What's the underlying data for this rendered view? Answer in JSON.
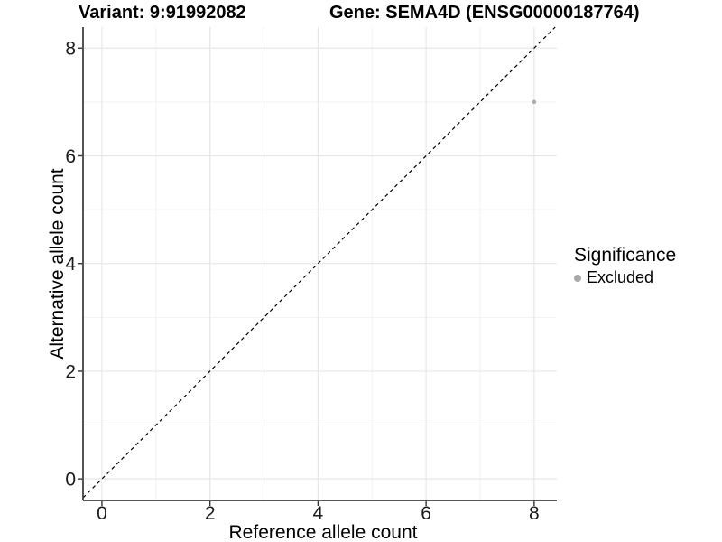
{
  "chart_data": {
    "type": "scatter",
    "title_left": "Variant: 9:91992082",
    "title_right": "Gene: SEMA4D (ENSG00000187764)",
    "xlabel": "Reference allele count",
    "ylabel": "Alternative allele count",
    "x_axis": {
      "ticks": [
        0,
        2,
        4,
        6,
        8
      ],
      "minor_ticks": [
        1,
        3,
        5,
        7
      ],
      "range": [
        -0.35,
        8.42
      ]
    },
    "y_axis": {
      "ticks": [
        0,
        2,
        4,
        6,
        8
      ],
      "minor_ticks": [
        1,
        3,
        5,
        7
      ],
      "range": [
        -0.4,
        8.39
      ]
    },
    "reference_line": {
      "equation": "y = x",
      "style": "dashed",
      "color": "#000000",
      "from": [
        -0.35,
        -0.35
      ],
      "to": [
        8.39,
        8.39
      ]
    },
    "series": [
      {
        "name": "Excluded",
        "color": "#adadad",
        "points": [
          {
            "x": 8,
            "y": 7
          }
        ]
      }
    ],
    "legend": {
      "title": "Significance",
      "position": "right",
      "items": [
        {
          "label": "Excluded",
          "color": "#a9a9a9"
        }
      ]
    },
    "grid": true,
    "colors": {
      "grid_major": "#e7e7e7",
      "grid_minor": "#f2f2f2",
      "axis_line": "#404040",
      "tick_mark": "#333333",
      "tick_text": "#1a1a1a",
      "background": "#ffffff"
    }
  }
}
